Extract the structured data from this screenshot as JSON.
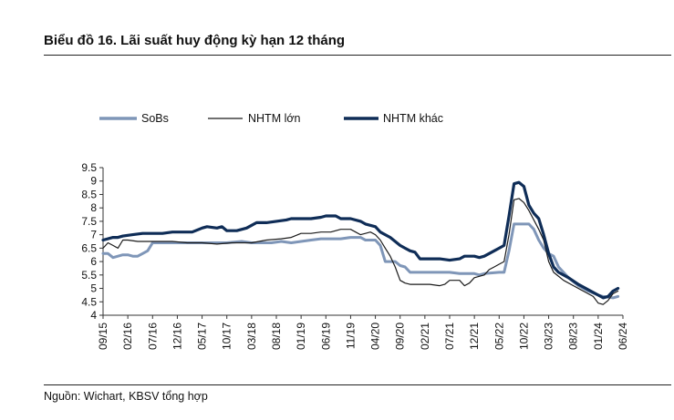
{
  "header": {
    "title": "Biểu đồ 16. Lãi suất huy động kỳ hạn 12 tháng"
  },
  "footer": {
    "source": "Nguồn: Wichart, KBSV tổng hợp"
  },
  "chart_data": {
    "type": "line",
    "title": "Biểu đồ 16. Lãi suất huy động kỳ hạn 12 tháng",
    "xlabel": "",
    "ylabel": "",
    "ylim": [
      4,
      9.5
    ],
    "yticks": [
      "9.5",
      "9",
      "8.5",
      "8",
      "7.5",
      "7",
      "6.5",
      "6",
      "5.5",
      "5",
      "4.5",
      "4"
    ],
    "x_tick_labels": [
      "09/15",
      "02/16",
      "07/16",
      "12/16",
      "05/17",
      "10/17",
      "03/18",
      "08/18",
      "01/19",
      "06/19",
      "11/19",
      "04/20",
      "09/20",
      "02/21",
      "07/21",
      "12/21",
      "05/22",
      "10/22",
      "03/23",
      "08/23",
      "01/24",
      "06/24"
    ],
    "x_range_months": [
      0,
      105
    ],
    "legend_position": "top-left",
    "series": [
      {
        "name": "SoBs",
        "color": "#7f96b8",
        "width": 3,
        "points": [
          [
            0,
            6.3
          ],
          [
            1,
            6.3
          ],
          [
            2,
            6.15
          ],
          [
            3,
            6.2
          ],
          [
            4,
            6.25
          ],
          [
            5,
            6.25
          ],
          [
            6,
            6.2
          ],
          [
            7,
            6.2
          ],
          [
            8,
            6.3
          ],
          [
            9,
            6.4
          ],
          [
            10,
            6.7
          ],
          [
            15,
            6.7
          ],
          [
            20,
            6.7
          ],
          [
            25,
            6.7
          ],
          [
            28,
            6.75
          ],
          [
            30,
            6.7
          ],
          [
            34,
            6.7
          ],
          [
            36,
            6.75
          ],
          [
            38,
            6.7
          ],
          [
            40,
            6.75
          ],
          [
            42,
            6.8
          ],
          [
            44,
            6.85
          ],
          [
            46,
            6.85
          ],
          [
            48,
            6.85
          ],
          [
            50,
            6.9
          ],
          [
            52,
            6.9
          ],
          [
            53,
            6.8
          ],
          [
            55,
            6.8
          ],
          [
            56,
            6.6
          ],
          [
            57,
            6.0
          ],
          [
            59,
            6.0
          ],
          [
            60,
            5.85
          ],
          [
            61,
            5.8
          ],
          [
            62,
            5.6
          ],
          [
            65,
            5.6
          ],
          [
            67,
            5.6
          ],
          [
            70,
            5.6
          ],
          [
            72,
            5.55
          ],
          [
            75,
            5.55
          ],
          [
            76,
            5.5
          ],
          [
            77,
            5.55
          ],
          [
            80,
            5.6
          ],
          [
            81,
            5.6
          ],
          [
            82,
            6.4
          ],
          [
            83,
            7.4
          ],
          [
            86,
            7.4
          ],
          [
            87,
            7.2
          ],
          [
            88,
            6.8
          ],
          [
            89,
            6.5
          ],
          [
            90,
            6.3
          ],
          [
            91,
            6.2
          ],
          [
            92,
            5.8
          ],
          [
            94,
            5.4
          ],
          [
            96,
            5.1
          ],
          [
            98,
            4.9
          ],
          [
            100,
            4.75
          ],
          [
            101,
            4.7
          ],
          [
            103,
            4.65
          ],
          [
            104,
            4.7
          ]
        ]
      },
      {
        "name": "NHTM lớn",
        "color": "#1a1a1a",
        "width": 1.2,
        "points": [
          [
            0,
            6.5
          ],
          [
            1,
            6.7
          ],
          [
            2,
            6.6
          ],
          [
            3,
            6.5
          ],
          [
            4,
            6.8
          ],
          [
            5,
            6.8
          ],
          [
            7,
            6.75
          ],
          [
            10,
            6.75
          ],
          [
            14,
            6.75
          ],
          [
            17,
            6.7
          ],
          [
            20,
            6.7
          ],
          [
            23,
            6.65
          ],
          [
            26,
            6.7
          ],
          [
            30,
            6.7
          ],
          [
            33,
            6.8
          ],
          [
            36,
            6.85
          ],
          [
            38,
            6.9
          ],
          [
            40,
            7.05
          ],
          [
            42,
            7.05
          ],
          [
            44,
            7.1
          ],
          [
            46,
            7.1
          ],
          [
            48,
            7.2
          ],
          [
            50,
            7.2
          ],
          [
            51,
            7.1
          ],
          [
            52,
            7.0
          ],
          [
            53,
            7.05
          ],
          [
            54,
            7.1
          ],
          [
            55,
            7.0
          ],
          [
            56,
            6.8
          ],
          [
            57,
            6.5
          ],
          [
            58,
            6.2
          ],
          [
            59,
            5.8
          ],
          [
            60,
            5.3
          ],
          [
            61,
            5.2
          ],
          [
            62,
            5.15
          ],
          [
            64,
            5.15
          ],
          [
            66,
            5.15
          ],
          [
            68,
            5.1
          ],
          [
            69,
            5.15
          ],
          [
            70,
            5.3
          ],
          [
            72,
            5.3
          ],
          [
            73,
            5.1
          ],
          [
            74,
            5.2
          ],
          [
            75,
            5.4
          ],
          [
            77,
            5.5
          ],
          [
            78,
            5.7
          ],
          [
            79,
            5.8
          ],
          [
            80,
            5.9
          ],
          [
            81,
            6.0
          ],
          [
            82,
            7.0
          ],
          [
            83,
            8.3
          ],
          [
            84,
            8.35
          ],
          [
            85,
            8.2
          ],
          [
            86,
            7.9
          ],
          [
            88,
            7.2
          ],
          [
            89,
            6.8
          ],
          [
            90,
            6.0
          ],
          [
            91,
            5.6
          ],
          [
            93,
            5.3
          ],
          [
            95,
            5.1
          ],
          [
            97,
            4.9
          ],
          [
            99,
            4.7
          ],
          [
            100,
            4.45
          ],
          [
            101,
            4.4
          ],
          [
            102,
            4.55
          ],
          [
            103,
            4.8
          ],
          [
            104,
            4.9
          ]
        ]
      },
      {
        "name": "NHTM khác",
        "color": "#0f2d57",
        "width": 3.2,
        "points": [
          [
            0,
            6.8
          ],
          [
            2,
            6.9
          ],
          [
            3,
            6.9
          ],
          [
            4,
            6.95
          ],
          [
            6,
            7.0
          ],
          [
            8,
            7.05
          ],
          [
            10,
            7.05
          ],
          [
            12,
            7.05
          ],
          [
            14,
            7.1
          ],
          [
            16,
            7.1
          ],
          [
            18,
            7.1
          ],
          [
            20,
            7.25
          ],
          [
            21,
            7.3
          ],
          [
            23,
            7.25
          ],
          [
            24,
            7.3
          ],
          [
            25,
            7.15
          ],
          [
            27,
            7.15
          ],
          [
            29,
            7.25
          ],
          [
            30,
            7.35
          ],
          [
            31,
            7.45
          ],
          [
            33,
            7.45
          ],
          [
            35,
            7.5
          ],
          [
            37,
            7.55
          ],
          [
            38,
            7.6
          ],
          [
            40,
            7.6
          ],
          [
            42,
            7.6
          ],
          [
            44,
            7.65
          ],
          [
            45,
            7.7
          ],
          [
            47,
            7.7
          ],
          [
            48,
            7.6
          ],
          [
            50,
            7.6
          ],
          [
            52,
            7.5
          ],
          [
            53,
            7.4
          ],
          [
            55,
            7.3
          ],
          [
            56,
            7.1
          ],
          [
            58,
            6.9
          ],
          [
            60,
            6.6
          ],
          [
            61,
            6.5
          ],
          [
            62,
            6.4
          ],
          [
            63,
            6.35
          ],
          [
            64,
            6.1
          ],
          [
            66,
            6.1
          ],
          [
            68,
            6.1
          ],
          [
            70,
            6.05
          ],
          [
            72,
            6.1
          ],
          [
            73,
            6.2
          ],
          [
            75,
            6.2
          ],
          [
            76,
            6.15
          ],
          [
            77,
            6.2
          ],
          [
            79,
            6.4
          ],
          [
            80,
            6.5
          ],
          [
            81,
            6.6
          ],
          [
            82,
            7.7
          ],
          [
            83,
            8.9
          ],
          [
            84,
            8.95
          ],
          [
            85,
            8.8
          ],
          [
            86,
            8.1
          ],
          [
            87,
            7.8
          ],
          [
            88,
            7.6
          ],
          [
            89,
            7.0
          ],
          [
            90,
            6.3
          ],
          [
            91,
            5.8
          ],
          [
            92,
            5.6
          ],
          [
            94,
            5.4
          ],
          [
            96,
            5.15
          ],
          [
            98,
            4.95
          ],
          [
            100,
            4.75
          ],
          [
            101,
            4.65
          ],
          [
            102,
            4.7
          ],
          [
            103,
            4.9
          ],
          [
            104,
            5.0
          ]
        ]
      }
    ]
  }
}
